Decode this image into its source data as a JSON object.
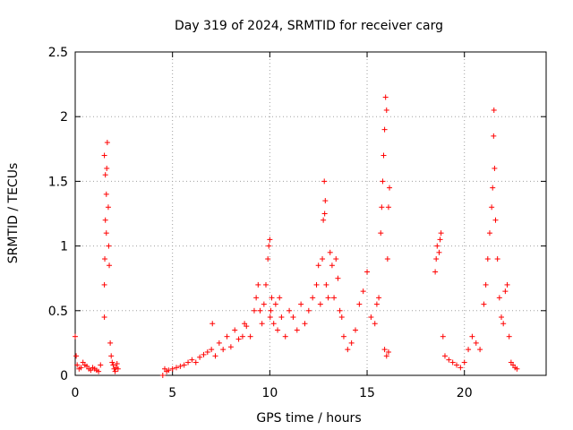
{
  "chart_data": {
    "type": "scatter",
    "title": "Day 319 of 2024, SRMTID for receiver carg",
    "xlabel": "GPS time / hours",
    "ylabel": "SRMTID / TECUs",
    "xlim": [
      0,
      24.2
    ],
    "ylim": [
      0,
      2.5
    ],
    "xticks": [
      0,
      5,
      10,
      15,
      20
    ],
    "yticks": [
      0,
      0.5,
      1,
      1.5,
      2,
      2.5
    ],
    "ytick_labels": [
      "0",
      "0.5",
      "1",
      "1.5",
      "2",
      "2.5"
    ],
    "grid": true,
    "marker": "+",
    "color": "#ff0000",
    "series": [
      {
        "name": "SRMTID",
        "x": [
          0.0,
          0.05,
          0.1,
          0.2,
          0.3,
          0.4,
          0.5,
          0.6,
          0.7,
          0.8,
          0.9,
          1.0,
          1.1,
          1.2,
          1.3,
          1.5,
          1.5,
          1.52,
          1.55,
          1.6,
          1.62,
          1.65,
          1.7,
          1.72,
          1.75,
          1.5,
          1.55,
          1.6,
          1.8,
          1.85,
          1.9,
          1.95,
          2.0,
          2.05,
          2.1,
          2.15,
          2.2,
          4.5,
          4.6,
          4.7,
          4.8,
          5.0,
          5.2,
          5.4,
          5.6,
          5.8,
          6.0,
          6.2,
          6.4,
          6.6,
          6.8,
          7.0,
          7.05,
          7.2,
          7.4,
          7.6,
          7.8,
          8.0,
          8.2,
          8.4,
          8.6,
          8.7,
          8.8,
          9.0,
          9.2,
          9.3,
          9.4,
          9.5,
          9.6,
          9.7,
          9.8,
          9.9,
          9.95,
          10.0,
          10.02,
          10.05,
          10.1,
          10.2,
          10.3,
          10.4,
          10.5,
          10.6,
          10.8,
          11.0,
          11.2,
          11.4,
          11.6,
          11.8,
          12.0,
          12.2,
          12.4,
          12.5,
          12.6,
          12.7,
          12.75,
          12.8,
          12.82,
          12.85,
          12.9,
          13.0,
          13.1,
          13.2,
          13.3,
          13.4,
          13.5,
          13.6,
          13.7,
          13.8,
          14.0,
          14.2,
          14.4,
          14.6,
          14.8,
          15.0,
          15.2,
          15.4,
          15.5,
          15.6,
          15.7,
          15.75,
          15.8,
          15.85,
          15.9,
          15.95,
          16.0,
          16.05,
          16.1,
          16.15,
          15.9,
          16.0,
          16.1,
          18.5,
          18.55,
          18.6,
          18.7,
          18.75,
          18.8,
          18.9,
          19.0,
          19.2,
          19.4,
          19.6,
          19.8,
          20.0,
          20.2,
          20.4,
          20.6,
          20.8,
          21.0,
          21.1,
          21.2,
          21.3,
          21.4,
          21.45,
          21.5,
          21.52,
          21.55,
          21.6,
          21.7,
          21.8,
          21.9,
          22.0,
          22.1,
          22.2,
          22.3,
          22.4,
          22.5,
          22.6,
          22.7
        ],
        "y": [
          0.3,
          0.15,
          0.08,
          0.05,
          0.06,
          0.1,
          0.08,
          0.07,
          0.05,
          0.04,
          0.06,
          0.05,
          0.04,
          0.03,
          0.08,
          0.45,
          0.7,
          0.9,
          1.2,
          1.4,
          1.6,
          1.8,
          1.3,
          1.0,
          0.85,
          1.7,
          1.55,
          1.1,
          0.25,
          0.15,
          0.1,
          0.08,
          0.05,
          0.03,
          0.06,
          0.09,
          0.05,
          0.0,
          0.05,
          0.03,
          0.04,
          0.05,
          0.06,
          0.07,
          0.08,
          0.1,
          0.12,
          0.1,
          0.14,
          0.16,
          0.18,
          0.2,
          0.4,
          0.15,
          0.25,
          0.2,
          0.3,
          0.22,
          0.35,
          0.28,
          0.3,
          0.4,
          0.38,
          0.3,
          0.5,
          0.6,
          0.7,
          0.5,
          0.4,
          0.55,
          0.7,
          0.9,
          1.0,
          1.05,
          0.45,
          0.5,
          0.6,
          0.4,
          0.55,
          0.35,
          0.6,
          0.45,
          0.3,
          0.5,
          0.45,
          0.35,
          0.55,
          0.4,
          0.5,
          0.6,
          0.7,
          0.85,
          0.55,
          0.9,
          1.2,
          1.5,
          1.25,
          1.35,
          0.7,
          0.6,
          0.95,
          0.85,
          0.6,
          0.9,
          0.75,
          0.5,
          0.45,
          0.3,
          0.2,
          0.25,
          0.35,
          0.55,
          0.65,
          0.8,
          0.45,
          0.4,
          0.55,
          0.6,
          1.1,
          1.3,
          1.5,
          1.7,
          1.9,
          2.15,
          2.05,
          0.9,
          1.3,
          1.45,
          0.2,
          0.15,
          0.18,
          0.8,
          0.9,
          1.0,
          0.95,
          1.05,
          1.1,
          0.3,
          0.15,
          0.12,
          0.1,
          0.08,
          0.06,
          0.1,
          0.2,
          0.3,
          0.25,
          0.2,
          0.55,
          0.7,
          0.9,
          1.1,
          1.3,
          1.45,
          1.85,
          2.05,
          1.6,
          1.2,
          0.9,
          0.6,
          0.45,
          0.4,
          0.65,
          0.7,
          0.3,
          0.1,
          0.08,
          0.06,
          0.05
        ]
      }
    ]
  }
}
